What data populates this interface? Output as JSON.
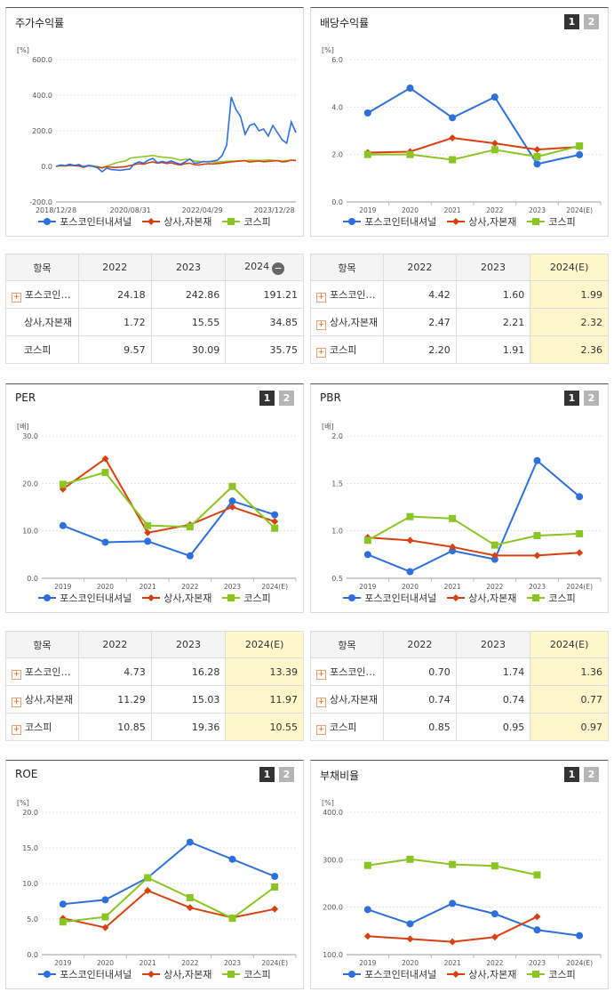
{
  "colors": {
    "s1": "#2d6fdb",
    "s2": "#d9400f",
    "s3": "#8bc523"
  },
  "legend": [
    "포스코인터내셔널",
    "상사,자본재",
    "코스피"
  ],
  "buttons": [
    "1",
    "2"
  ],
  "icons": {
    "expand": "plus-box-icon",
    "collapse": "minus-circle-icon"
  },
  "stock": {
    "title": "주가수익률",
    "chart_data": {
      "type": "line",
      "unit": "[%]",
      "yticks": [
        "600.0",
        "400.0",
        "200.0",
        "0.0",
        "-200.0"
      ],
      "xticks": [
        "2018/12/28",
        "2020/08/31",
        "2022/04/29",
        "2023/12/28"
      ],
      "ylim": [
        -200,
        600
      ],
      "series": [
        {
          "name": "포스코인터내셔널",
          "values": [
            0,
            8,
            4,
            12,
            5,
            10,
            -3,
            6,
            2,
            -8,
            -30,
            -10,
            -18,
            -20,
            -22,
            -18,
            -15,
            15,
            25,
            18,
            35,
            45,
            20,
            28,
            22,
            30,
            20,
            12,
            25,
            42,
            18,
            20,
            28,
            25,
            30,
            35,
            60,
            120,
            390,
            320,
            280,
            180,
            230,
            240,
            200,
            210,
            170,
            230,
            190,
            150,
            130,
            250,
            190
          ]
        },
        {
          "name": "상사,자본재",
          "values": [
            0,
            5,
            3,
            6,
            4,
            2,
            -5,
            3,
            0,
            -4,
            -8,
            -2,
            -5,
            -6,
            -4,
            -2,
            4,
            10,
            15,
            12,
            20,
            25,
            18,
            22,
            16,
            20,
            12,
            8,
            15,
            18,
            10,
            8,
            12,
            15,
            14,
            16,
            18,
            22,
            25,
            28,
            30,
            32,
            24,
            28,
            30,
            26,
            28,
            30,
            32,
            25,
            28,
            35,
            32
          ]
        },
        {
          "name": "코스피",
          "values": [
            0,
            3,
            2,
            5,
            6,
            5,
            0,
            4,
            3,
            0,
            -10,
            2,
            10,
            20,
            25,
            30,
            45,
            50,
            52,
            55,
            58,
            62,
            55,
            52,
            50,
            48,
            42,
            35,
            40,
            38,
            30,
            28,
            25,
            28,
            26,
            24,
            26,
            28,
            30,
            30,
            32,
            32,
            34,
            34,
            33,
            34,
            36,
            35,
            32,
            30,
            33,
            34,
            35
          ]
        }
      ]
    }
  },
  "dividend": {
    "title": "배당수익률",
    "chart_data": {
      "type": "line",
      "unit": "[%]",
      "yticks": [
        "6.0",
        "4.0",
        "2.0",
        "0.0"
      ],
      "ylim": [
        0,
        6
      ],
      "categories": [
        "2019",
        "2020",
        "2021",
        "2022",
        "2023",
        "2024(E)"
      ],
      "series": [
        {
          "name": "포스코인터내셔널",
          "values": [
            3.75,
            4.8,
            3.55,
            4.42,
            1.6,
            1.99
          ]
        },
        {
          "name": "상사,자본재",
          "values": [
            2.08,
            2.12,
            2.7,
            2.47,
            2.21,
            2.32
          ]
        },
        {
          "name": "코스피",
          "values": [
            2.0,
            2.0,
            1.78,
            2.2,
            1.91,
            2.36
          ]
        }
      ]
    }
  },
  "per": {
    "title": "PER",
    "chart_data": {
      "type": "line",
      "unit": "[배]",
      "yticks": [
        "30.0",
        "20.0",
        "10.0",
        "0.0"
      ],
      "ylim": [
        0,
        30
      ],
      "categories": [
        "2019",
        "2020",
        "2021",
        "2022",
        "2023",
        "2024(E)"
      ],
      "series": [
        {
          "name": "포스코인터내셔널",
          "values": [
            11.1,
            7.6,
            7.8,
            4.73,
            16.28,
            13.39
          ]
        },
        {
          "name": "상사,자본재",
          "values": [
            18.8,
            25.2,
            9.6,
            11.29,
            15.03,
            11.97
          ]
        },
        {
          "name": "코스피",
          "values": [
            19.8,
            22.3,
            11.1,
            10.85,
            19.36,
            10.55
          ]
        }
      ]
    }
  },
  "pbr": {
    "title": "PBR",
    "chart_data": {
      "type": "line",
      "unit": "[배]",
      "yticks": [
        "2.0",
        "1.5",
        "1.0",
        "0.5"
      ],
      "ylim": [
        0.5,
        2.0
      ],
      "categories": [
        "2019",
        "2020",
        "2021",
        "2022",
        "2023",
        "2024(E)"
      ],
      "series": [
        {
          "name": "포스코인터내셔널",
          "values": [
            0.75,
            0.57,
            0.79,
            0.7,
            1.74,
            1.36
          ]
        },
        {
          "name": "상사,자본재",
          "values": [
            0.93,
            0.9,
            0.83,
            0.74,
            0.74,
            0.77
          ]
        },
        {
          "name": "코스피",
          "values": [
            0.9,
            1.15,
            1.13,
            0.85,
            0.95,
            0.97
          ]
        }
      ]
    }
  },
  "roe": {
    "title": "ROE",
    "chart_data": {
      "type": "line",
      "unit": "[%]",
      "yticks": [
        "20.0",
        "15.0",
        "10.0",
        "5.0",
        "0.0"
      ],
      "ylim": [
        0,
        20
      ],
      "categories": [
        "2019",
        "2020",
        "2021",
        "2022",
        "2023",
        "2024(E)"
      ],
      "series": [
        {
          "name": "포스코인터내셔널",
          "values": [
            7.1,
            7.7,
            10.8,
            15.8,
            13.4,
            11.0
          ]
        },
        {
          "name": "상사,자본재",
          "values": [
            5.1,
            3.8,
            9.0,
            6.6,
            5.2,
            6.4
          ]
        },
        {
          "name": "코스피",
          "values": [
            4.6,
            5.3,
            10.8,
            8.0,
            5.1,
            9.5
          ]
        }
      ]
    }
  },
  "debt": {
    "title": "부채비율",
    "chart_data": {
      "type": "line",
      "unit": "[%]",
      "yticks": [
        "400.0",
        "300.0",
        "200.0",
        "100.0"
      ],
      "ylim": [
        100,
        400
      ],
      "categories": [
        "2019",
        "2020",
        "2021",
        "2022",
        "2023",
        "2024(E)"
      ],
      "series": [
        {
          "name": "포스코인터내셔널",
          "values": [
            195,
            165,
            208,
            186,
            152,
            140
          ]
        },
        {
          "name": "상사,자본재",
          "values": [
            139,
            133,
            127,
            137,
            180,
            null
          ]
        },
        {
          "name": "코스피",
          "values": [
            288,
            301,
            290,
            287,
            268,
            null
          ]
        }
      ]
    }
  },
  "table_stock": {
    "header": [
      "항목",
      "2022",
      "2023",
      "2024"
    ],
    "rows": [
      {
        "name": "포스코인…",
        "plus": true,
        "v": [
          "24.18",
          "242.86",
          "191.21"
        ]
      },
      {
        "name": "상사,자본재",
        "plus": false,
        "v": [
          "1.72",
          "15.55",
          "34.85"
        ]
      },
      {
        "name": "코스피",
        "plus": false,
        "v": [
          "9.57",
          "30.09",
          "35.75"
        ]
      }
    ]
  },
  "table_div": {
    "header": [
      "항목",
      "2022",
      "2023",
      "2024(E)"
    ],
    "rows": [
      {
        "name": "포스코인…",
        "plus": true,
        "v": [
          "4.42",
          "1.60",
          "1.99"
        ]
      },
      {
        "name": "상사,자본재",
        "plus": true,
        "v": [
          "2.47",
          "2.21",
          "2.32"
        ]
      },
      {
        "name": "코스피",
        "plus": true,
        "v": [
          "2.20",
          "1.91",
          "2.36"
        ]
      }
    ]
  },
  "table_per": {
    "header": [
      "항목",
      "2022",
      "2023",
      "2024(E)"
    ],
    "rows": [
      {
        "name": "포스코인…",
        "plus": true,
        "v": [
          "4.73",
          "16.28",
          "13.39"
        ]
      },
      {
        "name": "상사,자본재",
        "plus": true,
        "v": [
          "11.29",
          "15.03",
          "11.97"
        ]
      },
      {
        "name": "코스피",
        "plus": true,
        "v": [
          "10.85",
          "19.36",
          "10.55"
        ]
      }
    ]
  },
  "table_pbr": {
    "header": [
      "항목",
      "2022",
      "2023",
      "2024(E)"
    ],
    "rows": [
      {
        "name": "포스코인…",
        "plus": true,
        "v": [
          "0.70",
          "1.74",
          "1.36"
        ]
      },
      {
        "name": "상사,자본재",
        "plus": true,
        "v": [
          "0.74",
          "0.74",
          "0.77"
        ]
      },
      {
        "name": "코스피",
        "plus": true,
        "v": [
          "0.85",
          "0.95",
          "0.97"
        ]
      }
    ]
  }
}
